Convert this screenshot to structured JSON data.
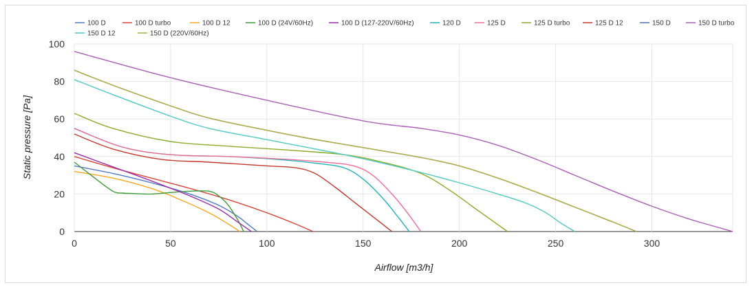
{
  "chart_data": {
    "type": "line",
    "title": "",
    "xlabel": "Airflow [m3/h]",
    "ylabel": "Static pressure [Pa]",
    "xlim": [
      0,
      342
    ],
    "ylim": [
      0,
      100
    ],
    "xticks": [
      0,
      50,
      100,
      150,
      200,
      250,
      300
    ],
    "yticks": [
      0,
      20,
      40,
      60,
      80,
      100
    ],
    "grid": true,
    "legend_position": "top",
    "series": [
      {
        "name": "100 D",
        "color": "#4e79c4",
        "x": [
          0,
          20,
          40,
          60,
          75,
          85,
          90,
          95
        ],
        "y": [
          35,
          31,
          26,
          20,
          14,
          8,
          4,
          0
        ]
      },
      {
        "name": "100 D turbo",
        "color": "#d6453a",
        "x": [
          0,
          20,
          40,
          60,
          80,
          100,
          115,
          124
        ],
        "y": [
          40,
          34,
          28.5,
          23,
          17,
          10,
          4,
          0
        ]
      },
      {
        "name": "100 D 12",
        "color": "#f5a623",
        "x": [
          0,
          20,
          40,
          55,
          70,
          80,
          86
        ],
        "y": [
          32,
          28.5,
          23,
          17,
          10,
          4,
          0
        ]
      },
      {
        "name": "100 D (24V/60Hz)",
        "color": "#3d9b35",
        "x": [
          0,
          10,
          20,
          25,
          30,
          40,
          50,
          60,
          70,
          75,
          80,
          85,
          88
        ],
        "y": [
          37,
          29,
          21.5,
          20.5,
          20.3,
          20,
          20.8,
          21.5,
          21.5,
          19,
          14,
          6,
          0
        ]
      },
      {
        "name": "100 D (127-220V/60Hz)",
        "color": "#9b2aa8",
        "x": [
          0,
          20,
          40,
          60,
          75,
          85,
          92
        ],
        "y": [
          42,
          34.5,
          27,
          19,
          12,
          5,
          0
        ]
      },
      {
        "name": "120 D",
        "color": "#1fb2bc",
        "x": [
          0,
          25,
          50,
          80,
          105,
          125,
          140,
          150,
          160,
          168,
          174
        ],
        "y": [
          55,
          45,
          41,
          40,
          38.5,
          36.5,
          34,
          28,
          18,
          8,
          0
        ]
      },
      {
        "name": "125 D",
        "color": "#ef6d94",
        "x": [
          0,
          25,
          50,
          80,
          105,
          130,
          145,
          155,
          165,
          173,
          180
        ],
        "y": [
          55,
          45,
          41,
          40,
          38.8,
          37,
          35,
          30,
          20,
          10,
          0
        ]
      },
      {
        "name": "125 D turbo",
        "color": "#8aab2b",
        "x": [
          0,
          20,
          50,
          80,
          110,
          140,
          160,
          180,
          195,
          210,
          225
        ],
        "y": [
          63,
          55,
          48,
          45.5,
          43.5,
          41,
          37,
          31,
          22,
          11,
          0
        ]
      },
      {
        "name": "125 D 12",
        "color": "#c2382c",
        "x": [
          0,
          20,
          45,
          70,
          100,
          115,
          125,
          135,
          145,
          155,
          165
        ],
        "y": [
          52,
          44,
          38.5,
          37,
          35,
          34,
          31,
          24,
          16,
          8,
          0
        ]
      },
      {
        "name": "150 D",
        "color": "#4e6ea8",
        "x": [
          0,
          20,
          50,
          70,
          100,
          120,
          140,
          160,
          180,
          200,
          220,
          240,
          260,
          280,
          292
        ],
        "y": [
          86,
          78,
          67,
          60.5,
          54,
          50,
          46.5,
          43,
          39.5,
          35,
          28.5,
          21,
          13,
          5,
          0
        ]
      },
      {
        "name": "150 D turbo",
        "color": "#a95fb5",
        "x": [
          0,
          50,
          100,
          150,
          180,
          200,
          220,
          240,
          260,
          280,
          300,
          320,
          342
        ],
        "y": [
          96,
          82,
          70,
          59,
          55,
          51.5,
          46,
          38.5,
          30,
          21.5,
          13.5,
          6.5,
          0
        ]
      },
      {
        "name": "150 D 12",
        "color": "#4fc7c2",
        "x": [
          0,
          20,
          50,
          70,
          100,
          120,
          140,
          160,
          180,
          200,
          220,
          235,
          245,
          252,
          260
        ],
        "y": [
          81,
          73,
          61.5,
          55,
          49,
          45,
          41,
          36.5,
          31.5,
          26,
          20,
          15,
          10,
          5,
          0
        ]
      },
      {
        "name": "150 D (220V/60Hz)",
        "color": "#b4ad3f",
        "x": [
          0,
          20,
          50,
          70,
          100,
          120,
          140,
          160,
          180,
          200,
          220,
          240,
          260,
          280,
          292
        ],
        "y": [
          86,
          78,
          67,
          60.5,
          54,
          50,
          46.5,
          43,
          39.5,
          35,
          28.5,
          21,
          13,
          5,
          0
        ]
      }
    ]
  }
}
